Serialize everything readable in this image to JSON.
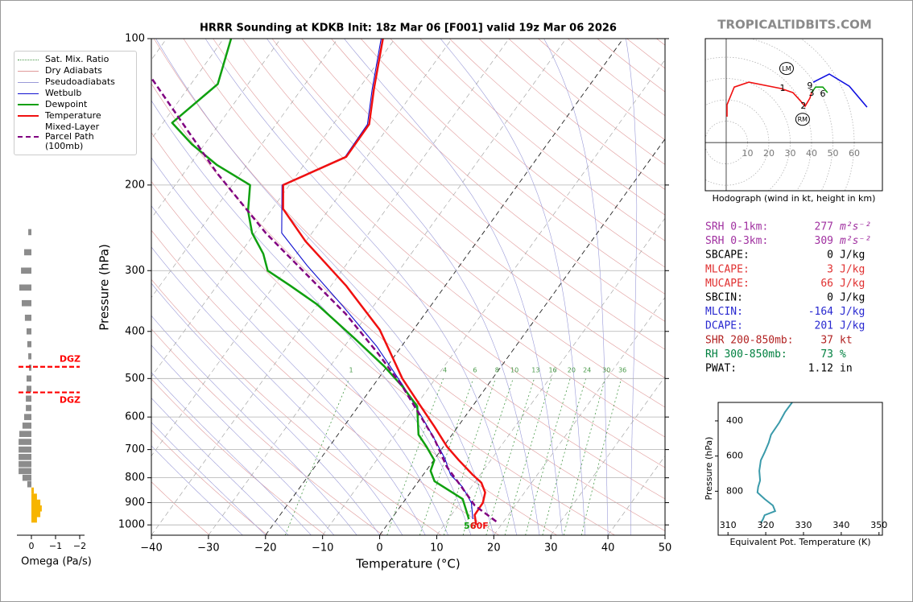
{
  "header": {
    "site": "TROPICALTIDBITS.COM"
  },
  "chart_data": [
    {
      "type": "skewt",
      "title": "HRRR Sounding at KDKB Init: 18z Mar 06 [F001] valid 19z Mar 06 2026",
      "xlabel": "Temperature (°C)",
      "ylabel": "Pressure (hPa)",
      "xlim": [
        -40,
        50
      ],
      "ylim": [
        1050,
        100
      ],
      "log_y": true,
      "xticks": [
        {
          "value": -40,
          "label": "−40"
        },
        {
          "value": -30,
          "label": "−30"
        },
        {
          "value": -20,
          "label": "−20"
        },
        {
          "value": -10,
          "label": "−10"
        },
        0,
        10,
        20,
        30,
        40,
        50
      ],
      "yticks": [
        100,
        200,
        300,
        400,
        500,
        600,
        700,
        800,
        900,
        1000
      ],
      "grid": true,
      "mixing_ratios": [
        1,
        4,
        6,
        8,
        10,
        13,
        16,
        20,
        24,
        30,
        36
      ],
      "reference_lines": [
        {
          "name": "Sat. Mix. Ratio",
          "color": "#4a9a4a",
          "style": "dotted"
        },
        {
          "name": "Dry Adiabats",
          "color": "#e09a9a",
          "style": "solid"
        },
        {
          "name": "Pseudoadiabats",
          "color": "#9a9ad8",
          "style": "solid"
        }
      ],
      "series": [
        {
          "name": "Wetbulb",
          "color": "#1010d0",
          "style": "thin",
          "pressure": [
            973,
            901,
            835,
            789,
            731,
            665,
            604,
            519,
            429,
            354,
            293,
            251,
            224,
            200,
            175,
            150,
            127,
            100
          ],
          "values": [
            14.3,
            12.0,
            8.4,
            4.8,
            1.8,
            -2.6,
            -7.2,
            -14.6,
            -24.4,
            -35.5,
            -46.7,
            -55.3,
            -58.3,
            -61.3,
            -53.8,
            -54.0,
            -57.6,
            -62.4
          ]
        },
        {
          "name": "Dewpoint",
          "color": "#10a010",
          "style": "solid",
          "pressure": [
            973,
            885,
            813,
            774,
            736,
            690,
            652,
            570,
            519,
            472,
            413,
            352,
            322,
            300,
            277,
            251,
            226,
            200,
            182,
            165,
            149,
            124,
            100
          ],
          "values": [
            13.6,
            10.0,
            2.8,
            0.8,
            0.1,
            -3.0,
            -5.9,
            -9.7,
            -14.8,
            -20.5,
            -29.3,
            -40.1,
            -47.2,
            -53.0,
            -55.9,
            -60.5,
            -64.0,
            -66.9,
            -75.2,
            -82.2,
            -88.4,
            -85.3,
            -88.7
          ]
        },
        {
          "name": "Temperature",
          "color": "#f01010",
          "style": "solid",
          "pressure": [
            1000,
            954,
            901,
            858,
            819,
            789,
            736,
            690,
            628,
            560,
            500,
            397,
            322,
            261,
            224,
            200,
            175,
            150,
            127,
            100
          ],
          "values": [
            15.6,
            14.1,
            14.0,
            13.1,
            11.2,
            8.7,
            4.4,
            0.6,
            -4.1,
            -10.0,
            -15.8,
            -25.9,
            -37.4,
            -50.1,
            -58.1,
            -61.1,
            -53.6,
            -53.7,
            -57.3,
            -62.1
          ]
        },
        {
          "name": "Mixed-Layer\nParcel Path (100mb)",
          "color": "#800080",
          "style": "dashed",
          "pressure": [
            984,
            912,
            819,
            759,
            665,
            519,
            445,
            368,
            304,
            251,
            189,
            120
          ],
          "values": [
            18.7,
            12.9,
            7.2,
            3.1,
            -2.6,
            -14.8,
            -23.1,
            -33.9,
            -46.0,
            -58.1,
            -74.2,
            -97.9
          ]
        }
      ],
      "annotations": [
        {
          "text": "56",
          "color": "#10a010"
        },
        {
          "text": "60F",
          "color": "#f01010"
        }
      ]
    },
    {
      "type": "bar",
      "orientation": "horizontal",
      "xlabel": "Omega (Pa/s)",
      "xlim": [
        0.6,
        -2.2
      ],
      "xticks": [
        0,
        {
          "value": -1,
          "label": "−1"
        },
        {
          "value": -2,
          "label": "−2"
        }
      ],
      "pressure": [
        250,
        275,
        300,
        325,
        350,
        375,
        400,
        425,
        450,
        475,
        500,
        525,
        550,
        575,
        600,
        625,
        650,
        675,
        700,
        725,
        750,
        775,
        800,
        825,
        850,
        875,
        900,
        925,
        950,
        975
      ],
      "values": [
        0.13,
        0.3,
        0.43,
        0.5,
        0.4,
        0.27,
        0.2,
        0.17,
        0.13,
        0.1,
        0.2,
        0.2,
        0.23,
        0.23,
        0.3,
        0.37,
        0.5,
        0.53,
        0.53,
        0.53,
        0.53,
        0.53,
        0.37,
        0.17,
        -0.1,
        -0.23,
        -0.37,
        -0.43,
        -0.37,
        -0.23
      ],
      "positive_color": "#8c8c8c",
      "negative_color": "#f7b500",
      "dgz": [
        {
          "pressure": 473,
          "label": "DGZ"
        },
        {
          "pressure": 534,
          "label": "DGZ"
        }
      ],
      "dgz_color": "#ff0000"
    },
    {
      "type": "hodograph",
      "caption": "Hodograph (wind in kt, height in km)",
      "ulim": [
        -9.8,
        73.2
      ],
      "vlim": [
        -22.6,
        48.7
      ],
      "rings": [
        10,
        20,
        30,
        40,
        50,
        60
      ],
      "series": [
        {
          "color": "#f01010",
          "u": [
            0.4,
            0.4,
            3.8,
            10.6,
            25.7,
            31.3,
            35.1,
            37.0,
            39.2,
            40.0
          ],
          "v": [
            12.1,
            17.7,
            26.0,
            28.3,
            25.3,
            23.4,
            19.2,
            17.0,
            20.8,
            23.4
          ]
        },
        {
          "color": "#10a010",
          "u": [
            40.0,
            41.9,
            45.3,
            47.5
          ],
          "v": [
            23.4,
            26.0,
            26.0,
            23.4
          ]
        },
        {
          "color": "#1010e0",
          "u": [
            40.8,
            48.3,
            57.7,
            66.0
          ],
          "v": [
            28.3,
            32.1,
            26.4,
            16.6
          ]
        }
      ],
      "height_labels": [
        {
          "label": "1",
          "u": 26.4,
          "v": 25.3
        },
        {
          "label": "2",
          "u": 36.2,
          "v": 17.0
        },
        {
          "label": "3",
          "u": 40.0,
          "v": 23.0
        },
        {
          "label": "6",
          "u": 45.3,
          "v": 22.6
        },
        {
          "label": "9",
          "u": 39.2,
          "v": 26.4
        }
      ],
      "motion_markers": [
        {
          "label": "LM",
          "u": 28.3,
          "v": 34.7
        },
        {
          "label": "RM",
          "u": 35.8,
          "v": 10.9
        }
      ]
    },
    {
      "type": "line",
      "xlabel": "Equivalent Pot. Temperature (K)",
      "ylabel": "Pressure (hPa)",
      "xlim": [
        307.4,
        350.9
      ],
      "ylim": [
        1050,
        295
      ],
      "xticks": [
        310,
        320,
        330,
        340,
        350
      ],
      "yticks": [
        400,
        600,
        800
      ],
      "color": "#3a9aaa",
      "pressure": [
        295,
        350,
        409,
        478,
        524,
        579,
        624,
        684,
        739,
        775,
        807,
        844,
        881,
        913,
        936,
        958,
        981
      ],
      "values": [
        327.0,
        325.1,
        323.6,
        321.4,
        320.8,
        319.7,
        318.7,
        318.3,
        318.5,
        318.0,
        317.8,
        319.7,
        321.9,
        322.5,
        319.7,
        319.3,
        318.7
      ]
    }
  ],
  "indices": {
    "rows": [
      {
        "label": "SRH 0-1km:",
        "value": 277,
        "unit": "m²s⁻²",
        "color": "#a030a0"
      },
      {
        "label": "SRH 0-3km:",
        "value": 309,
        "unit": "m²s⁻²",
        "color": "#a030a0"
      },
      {
        "label": "SBCAPE:",
        "value": 0,
        "unit": "J/kg",
        "color": "#000000"
      },
      {
        "label": "MLCAPE:",
        "value": 3,
        "unit": "J/kg",
        "color": "#e03030"
      },
      {
        "label": "MUCAPE:",
        "value": 66,
        "unit": "J/kg",
        "color": "#e03030"
      },
      {
        "label": "SBCIN:",
        "value": 0,
        "unit": "J/kg",
        "color": "#000000"
      },
      {
        "label": "MLCIN:",
        "value": -164,
        "unit": "J/kg",
        "color": "#2828d0"
      },
      {
        "label": "DCAPE:",
        "value": 201,
        "unit": "J/kg",
        "color": "#2828d0"
      },
      {
        "label": "SHR 200-850mb:",
        "value": 37,
        "unit": "kt",
        "color": "#b22222"
      },
      {
        "label": "RH 300-850mb:",
        "value": 73,
        "unit": "%",
        "color": "#008040"
      },
      {
        "label": "PWAT:",
        "value": 1.12,
        "unit": "in",
        "color": "#000000"
      }
    ]
  }
}
